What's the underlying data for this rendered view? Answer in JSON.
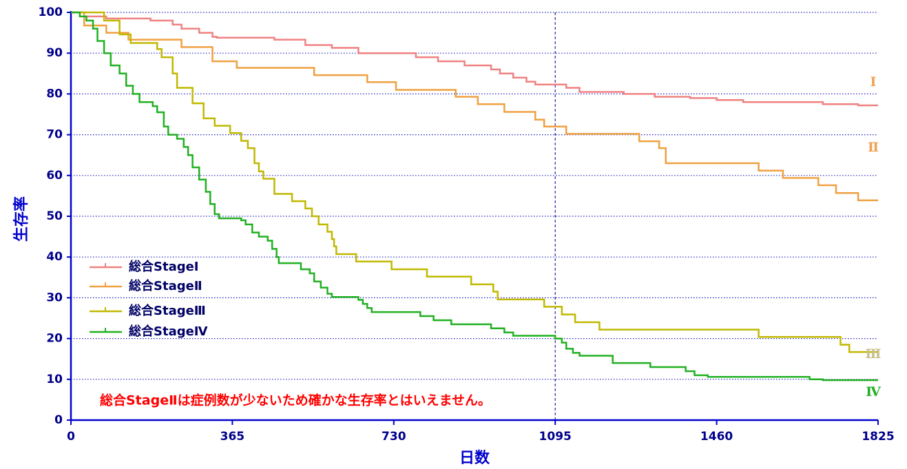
{
  "chart_data": {
    "type": "line",
    "step": true,
    "x_label": "日数",
    "y_label": "生存率",
    "annotation": "総合StageⅡは症例数が少ないため確かな生存率とはいえません。",
    "xlim": [
      0,
      1825
    ],
    "ylim": [
      0,
      100
    ],
    "xticks": [
      0,
      365,
      730,
      1095,
      1460,
      1825
    ],
    "yticks": [
      0,
      10,
      20,
      30,
      40,
      50,
      60,
      70,
      80,
      90,
      100
    ],
    "grid": true,
    "reference_x": 1095,
    "legend": "lower left",
    "series": [
      {
        "name": "総合StageⅠ",
        "color": "#f08080",
        "end_label": "Ⅰ",
        "end_label_color": "#f0a050",
        "x": [
          0,
          30,
          80,
          180,
          230,
          250,
          290,
          320,
          330,
          460,
          530,
          590,
          650,
          780,
          830,
          890,
          950,
          970,
          1000,
          1030,
          1050,
          1120,
          1150,
          1250,
          1320,
          1400,
          1460,
          1520,
          1700,
          1780,
          1825
        ],
        "values": [
          100,
          99,
          98.5,
          98,
          97,
          96,
          95,
          94,
          93.8,
          93.3,
          92,
          91.3,
          90,
          89,
          88,
          87,
          86,
          85,
          84,
          83,
          82.3,
          81.5,
          80.5,
          80,
          79.3,
          79,
          78.5,
          78,
          77.5,
          77.2,
          77.2
        ]
      },
      {
        "name": "総合StageⅡ",
        "color": "#f0a040",
        "end_label": "Ⅱ",
        "end_label_color": "#f0a050",
        "x": [
          0,
          30,
          80,
          130,
          250,
          320,
          375,
          550,
          670,
          735,
          870,
          920,
          980,
          1050,
          1070,
          1120,
          1285,
          1330,
          1345,
          1555,
          1610,
          1690,
          1730,
          1780,
          1825
        ],
        "values": [
          100,
          96.8,
          95,
          93.3,
          91.5,
          88,
          86.4,
          84.6,
          82.9,
          81,
          79.3,
          77.5,
          75.6,
          73.7,
          72,
          70.2,
          68.4,
          66.7,
          63,
          61.2,
          59.4,
          57.6,
          55.7,
          53.9,
          53.9
        ]
      },
      {
        "name": "総合StageⅢ",
        "color": "#c0b800",
        "end_label": "Ⅲ",
        "end_label_color": "#c8c090",
        "x": [
          0,
          75,
          110,
          135,
          195,
          205,
          230,
          240,
          275,
          300,
          325,
          360,
          385,
          400,
          415,
          425,
          435,
          460,
          500,
          530,
          545,
          560,
          580,
          590,
          595,
          600,
          645,
          725,
          805,
          905,
          955,
          965,
          1070,
          1110,
          1140,
          1195,
          1555,
          1740,
          1760,
          1825
        ],
        "values": [
          100,
          98,
          94.6,
          92.5,
          91,
          89,
          85,
          81.5,
          77.7,
          74,
          72.2,
          70.4,
          68.5,
          66.7,
          63,
          61,
          59.2,
          55.5,
          53.7,
          51.9,
          50,
          48,
          46.2,
          44.4,
          42.6,
          40.7,
          38.9,
          37,
          35.2,
          33.3,
          31.5,
          29.6,
          27.8,
          25.9,
          24,
          22.2,
          20.4,
          18.5,
          16.7,
          16.7
        ]
      },
      {
        "name": "総合StageⅣ",
        "color": "#20b020",
        "end_label": "Ⅳ",
        "end_label_color": "#20b020",
        "x": [
          0,
          20,
          35,
          50,
          60,
          75,
          90,
          110,
          125,
          140,
          155,
          185,
          195,
          210,
          220,
          240,
          255,
          265,
          275,
          290,
          305,
          315,
          325,
          335,
          385,
          395,
          410,
          425,
          445,
          455,
          465,
          470,
          520,
          540,
          550,
          565,
          580,
          590,
          650,
          660,
          670,
          680,
          790,
          820,
          860,
          950,
          980,
          1000,
          1095,
          1110,
          1120,
          1135,
          1150,
          1225,
          1310,
          1390,
          1410,
          1440,
          1670,
          1700,
          1825
        ],
        "values": [
          100,
          99,
          98,
          96,
          93,
          90,
          87,
          85,
          82,
          80,
          78,
          77,
          75.5,
          72,
          70,
          69,
          67,
          65,
          62,
          59,
          56,
          53,
          50.5,
          49.5,
          49,
          48,
          46,
          45,
          44,
          42,
          40,
          38.5,
          37,
          36,
          34,
          32.5,
          31,
          30.2,
          29.5,
          28.5,
          27.5,
          26.5,
          25.5,
          24.5,
          23.5,
          22.5,
          21.5,
          20.7,
          20,
          19,
          17.5,
          16.5,
          15.8,
          14,
          13,
          12,
          11,
          10.6,
          10,
          9.8,
          9.8
        ]
      }
    ]
  }
}
